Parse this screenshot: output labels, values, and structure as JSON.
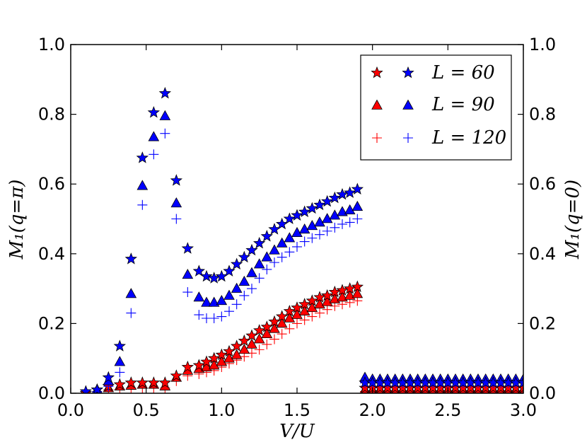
{
  "chart_data": {
    "type": "scatter",
    "xlabel": "V/U",
    "ylabel_left": "M₁(q=π)",
    "ylabel_right": "M₁(q=0)",
    "xlim": [
      0.0,
      3.0
    ],
    "ylim": [
      0.0,
      1.0
    ],
    "x_ticks": [
      "0.0",
      "0.5",
      "1.0",
      "1.5",
      "2.0",
      "2.5",
      "3.0"
    ],
    "y_ticks": [
      "0.0",
      "0.2",
      "0.4",
      "0.6",
      "0.8",
      "1.0"
    ],
    "legend": {
      "placement": "top-right",
      "entries": [
        {
          "label": "L = 60",
          "marker": "star"
        },
        {
          "label": "L = 90",
          "marker": "triangle"
        },
        {
          "label": "L = 120",
          "marker": "plus"
        }
      ]
    },
    "colors": {
      "q_pi": "#0000ff",
      "q_zero": "#ff0000"
    },
    "series": [
      {
        "name": "L=120, q=0",
        "quantity": "q=0",
        "marker": "plus",
        "x": [
          0.1,
          0.175,
          0.25,
          0.325,
          0.4,
          0.475,
          0.55,
          0.625,
          0.7,
          0.775,
          0.85,
          0.9,
          0.95,
          1.0,
          1.05,
          1.1,
          1.15,
          1.2,
          1.25,
          1.3,
          1.35,
          1.4,
          1.45,
          1.5,
          1.55,
          1.6,
          1.65,
          1.7,
          1.75,
          1.8,
          1.85,
          1.9,
          1.95,
          2.0,
          2.05,
          2.1,
          2.15,
          2.2,
          2.25,
          2.3,
          2.35,
          2.4,
          2.45,
          2.5,
          2.55,
          2.6,
          2.65,
          2.7,
          2.75,
          2.8,
          2.85,
          2.9,
          2.95,
          3.0
        ],
        "y": [
          0.0,
          0.005,
          0.01,
          0.01,
          0.015,
          0.015,
          0.015,
          0.015,
          0.035,
          0.05,
          0.055,
          0.06,
          0.065,
          0.075,
          0.085,
          0.095,
          0.105,
          0.115,
          0.125,
          0.14,
          0.155,
          0.17,
          0.185,
          0.2,
          0.21,
          0.22,
          0.23,
          0.24,
          0.25,
          0.255,
          0.26,
          0.265,
          0.005,
          0.005,
          0.005,
          0.005,
          0.005,
          0.005,
          0.005,
          0.005,
          0.005,
          0.005,
          0.005,
          0.005,
          0.005,
          0.005,
          0.005,
          0.005,
          0.005,
          0.005,
          0.005,
          0.005,
          0.005,
          0.005
        ]
      },
      {
        "name": "L=90, q=0",
        "quantity": "q=0",
        "marker": "triangle",
        "x": [
          0.175,
          0.25,
          0.325,
          0.4,
          0.475,
          0.55,
          0.625,
          0.7,
          0.775,
          0.85,
          0.9,
          0.95,
          1.0,
          1.05,
          1.1,
          1.15,
          1.2,
          1.25,
          1.3,
          1.35,
          1.4,
          1.45,
          1.5,
          1.55,
          1.6,
          1.65,
          1.7,
          1.75,
          1.8,
          1.85,
          1.9,
          1.95,
          2.0,
          2.05,
          2.1,
          2.15,
          2.2,
          2.25,
          2.3,
          2.35,
          2.4,
          2.45,
          2.5,
          2.55,
          2.6,
          2.65,
          2.7,
          2.75,
          2.8,
          2.85,
          2.9,
          2.95,
          3.0
        ],
        "y": [
          0.005,
          0.015,
          0.02,
          0.022,
          0.025,
          0.025,
          0.02,
          0.045,
          0.065,
          0.07,
          0.075,
          0.08,
          0.09,
          0.1,
          0.11,
          0.125,
          0.14,
          0.155,
          0.17,
          0.185,
          0.2,
          0.215,
          0.225,
          0.235,
          0.245,
          0.255,
          0.262,
          0.27,
          0.275,
          0.28,
          0.285,
          0.01,
          0.01,
          0.01,
          0.01,
          0.01,
          0.01,
          0.01,
          0.01,
          0.01,
          0.01,
          0.01,
          0.01,
          0.01,
          0.01,
          0.01,
          0.01,
          0.01,
          0.01,
          0.01,
          0.01,
          0.01,
          0.01
        ]
      },
      {
        "name": "L=60, q=0",
        "quantity": "q=0",
        "marker": "star",
        "x": [
          0.1,
          0.175,
          0.25,
          0.325,
          0.4,
          0.475,
          0.55,
          0.625,
          0.7,
          0.775,
          0.85,
          0.9,
          0.95,
          1.0,
          1.05,
          1.1,
          1.15,
          1.2,
          1.25,
          1.3,
          1.35,
          1.4,
          1.45,
          1.5,
          1.55,
          1.6,
          1.65,
          1.7,
          1.75,
          1.8,
          1.85,
          1.9,
          1.95,
          2.0,
          2.05,
          2.1,
          2.15,
          2.2,
          2.25,
          2.3,
          2.35,
          2.4,
          2.45,
          2.5,
          2.55,
          2.6,
          2.65,
          2.7,
          2.75,
          2.8,
          2.85,
          2.9,
          2.95,
          3.0
        ],
        "y": [
          0.0,
          0.01,
          0.02,
          0.025,
          0.03,
          0.03,
          0.03,
          0.03,
          0.05,
          0.075,
          0.08,
          0.09,
          0.1,
          0.11,
          0.12,
          0.135,
          0.15,
          0.165,
          0.18,
          0.19,
          0.205,
          0.22,
          0.235,
          0.245,
          0.255,
          0.265,
          0.275,
          0.28,
          0.29,
          0.295,
          0.3,
          0.305,
          0.015,
          0.015,
          0.015,
          0.015,
          0.015,
          0.015,
          0.015,
          0.015,
          0.015,
          0.015,
          0.015,
          0.015,
          0.015,
          0.015,
          0.015,
          0.015,
          0.015,
          0.015,
          0.015,
          0.015,
          0.015,
          0.015
        ]
      },
      {
        "name": "L=120, q=π",
        "quantity": "q=π",
        "marker": "plus",
        "x": [
          0.175,
          0.25,
          0.325,
          0.4,
          0.475,
          0.55,
          0.625,
          0.7,
          0.775,
          0.85,
          0.9,
          0.95,
          1.0,
          1.05,
          1.1,
          1.15,
          1.2,
          1.25,
          1.3,
          1.35,
          1.4,
          1.45,
          1.5,
          1.55,
          1.6,
          1.65,
          1.7,
          1.75,
          1.8,
          1.85,
          1.9,
          1.95,
          2.0,
          2.05,
          2.1,
          2.15,
          2.2,
          2.25,
          2.3,
          2.35,
          2.4,
          2.45,
          2.5,
          2.55,
          2.6,
          2.65,
          2.7,
          2.75,
          2.8,
          2.85,
          2.9,
          2.95,
          3.0
        ],
        "y": [
          0.005,
          0.02,
          0.06,
          0.23,
          0.54,
          0.685,
          0.745,
          0.5,
          0.29,
          0.225,
          0.215,
          0.215,
          0.22,
          0.235,
          0.255,
          0.28,
          0.3,
          0.33,
          0.355,
          0.375,
          0.39,
          0.405,
          0.42,
          0.435,
          0.445,
          0.455,
          0.465,
          0.475,
          0.485,
          0.49,
          0.5,
          0.03,
          0.03,
          0.03,
          0.03,
          0.03,
          0.03,
          0.03,
          0.03,
          0.03,
          0.03,
          0.03,
          0.03,
          0.03,
          0.03,
          0.03,
          0.03,
          0.03,
          0.03,
          0.03,
          0.03,
          0.03,
          0.03
        ]
      },
      {
        "name": "L=90, q=π",
        "quantity": "q=π",
        "marker": "triangle",
        "x": [
          0.175,
          0.25,
          0.325,
          0.4,
          0.475,
          0.55,
          0.625,
          0.7,
          0.775,
          0.85,
          0.9,
          0.95,
          1.0,
          1.05,
          1.1,
          1.15,
          1.2,
          1.25,
          1.3,
          1.35,
          1.4,
          1.45,
          1.5,
          1.55,
          1.6,
          1.65,
          1.7,
          1.75,
          1.8,
          1.85,
          1.9,
          1.95,
          2.0,
          2.05,
          2.1,
          2.15,
          2.2,
          2.25,
          2.3,
          2.35,
          2.4,
          2.45,
          2.5,
          2.55,
          2.6,
          2.65,
          2.7,
          2.75,
          2.8,
          2.85,
          2.9,
          2.95,
          3.0
        ],
        "y": [
          0.01,
          0.035,
          0.09,
          0.285,
          0.595,
          0.735,
          0.795,
          0.545,
          0.34,
          0.275,
          0.26,
          0.26,
          0.265,
          0.28,
          0.3,
          0.32,
          0.345,
          0.37,
          0.39,
          0.41,
          0.43,
          0.445,
          0.46,
          0.47,
          0.48,
          0.49,
          0.5,
          0.51,
          0.52,
          0.525,
          0.535,
          0.045,
          0.04,
          0.04,
          0.04,
          0.04,
          0.04,
          0.04,
          0.04,
          0.04,
          0.04,
          0.04,
          0.04,
          0.04,
          0.04,
          0.04,
          0.04,
          0.04,
          0.04,
          0.04,
          0.04,
          0.04,
          0.04
        ]
      },
      {
        "name": "L=60, q=π",
        "quantity": "q=π",
        "marker": "star",
        "x": [
          0.1,
          0.175,
          0.25,
          0.325,
          0.4,
          0.475,
          0.55,
          0.625,
          0.7,
          0.775,
          0.85,
          0.9,
          0.95,
          1.0,
          1.05,
          1.1,
          1.15,
          1.2,
          1.25,
          1.3,
          1.35,
          1.4,
          1.45,
          1.5,
          1.55,
          1.6,
          1.65,
          1.7,
          1.75,
          1.8,
          1.85,
          1.9,
          1.95,
          2.0,
          2.05,
          2.1,
          2.15,
          2.2,
          2.25,
          2.3,
          2.35,
          2.4,
          2.45,
          2.5,
          2.55,
          2.6,
          2.65,
          2.7,
          2.75,
          2.8,
          2.85,
          2.9,
          2.95,
          3.0
        ],
        "y": [
          0.005,
          0.01,
          0.045,
          0.135,
          0.385,
          0.675,
          0.805,
          0.86,
          0.61,
          0.415,
          0.35,
          0.335,
          0.33,
          0.335,
          0.35,
          0.37,
          0.39,
          0.41,
          0.43,
          0.45,
          0.47,
          0.485,
          0.5,
          0.51,
          0.52,
          0.53,
          0.54,
          0.55,
          0.56,
          0.57,
          0.575,
          0.585,
          0.03,
          0.03,
          0.03,
          0.03,
          0.03,
          0.03,
          0.03,
          0.03,
          0.03,
          0.03,
          0.03,
          0.03,
          0.03,
          0.03,
          0.03,
          0.03,
          0.03,
          0.03,
          0.03,
          0.03,
          0.03,
          0.03
        ]
      }
    ]
  }
}
